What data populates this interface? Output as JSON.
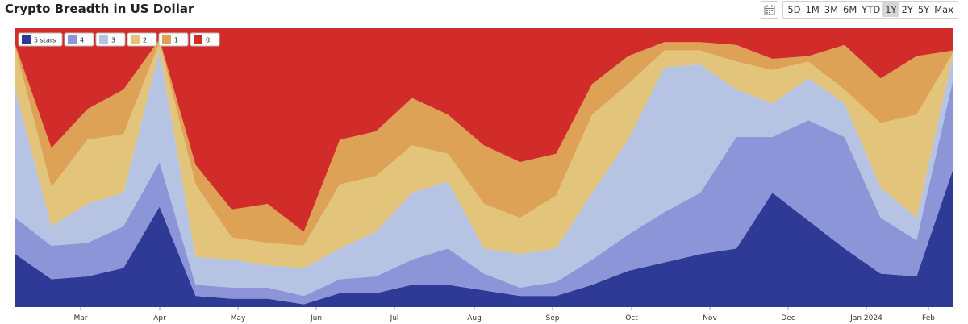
{
  "header": {
    "title": "Crypto Breadth in US Dollar"
  },
  "range": {
    "options": [
      "5D",
      "1M",
      "3M",
      "6M",
      "YTD",
      "1Y",
      "2Y",
      "5Y",
      "Max"
    ],
    "selected": "1Y"
  },
  "icons": {
    "calendar": "calendar-icon"
  },
  "colors": {
    "s5": "#2f3a96",
    "s4": "#8c95d8",
    "s3": "#b6c3e2",
    "s2": "#e2c47a",
    "s1": "#dea257",
    "s0": "#d12b2a"
  },
  "chart_data": {
    "type": "area",
    "stacked": true,
    "normalized": true,
    "title": "Crypto Breadth in US Dollar",
    "legend_position": "top-left",
    "x_ticks": [
      "Mar",
      "Apr",
      "May",
      "Jun",
      "Jul",
      "Aug",
      "Sep",
      "Oct",
      "Nov",
      "Dec",
      "Jan 2024",
      "Feb"
    ],
    "x": [
      "Feb 10",
      "Feb 24",
      "Mar 10",
      "Mar 24",
      "Apr 7",
      "Apr 21",
      "May 5",
      "May 19",
      "Jun 2",
      "Jun 16",
      "Jun 30",
      "Jul 14",
      "Jul 28",
      "Aug 11",
      "Aug 25",
      "Sep 8",
      "Sep 22",
      "Oct 6",
      "Oct 20",
      "Nov 3",
      "Nov 17",
      "Dec 1",
      "Dec 15",
      "Dec 29",
      "Jan 12",
      "Jan 26",
      "Feb 9"
    ],
    "ylim": [
      0,
      100
    ],
    "series": [
      {
        "name": "5 stars",
        "values": [
          19,
          10,
          11,
          14,
          36,
          4,
          3,
          3,
          1,
          5,
          5,
          8,
          8,
          6,
          4,
          4,
          8,
          13,
          16,
          19,
          21,
          41,
          31,
          21,
          12,
          11,
          49
        ]
      },
      {
        "name": "4",
        "values": [
          13,
          12,
          12,
          15,
          16,
          4,
          4,
          4,
          3,
          5,
          6,
          9,
          13,
          6,
          3,
          5,
          9,
          13,
          18,
          22,
          40,
          20,
          36,
          40,
          20,
          13,
          32
        ]
      },
      {
        "name": "3",
        "values": [
          46,
          7,
          14,
          12,
          40,
          10,
          10,
          8,
          10,
          11,
          16,
          24,
          24,
          9,
          12,
          12,
          24,
          34,
          52,
          46,
          17,
          12,
          15,
          12,
          11,
          8,
          9
        ]
      },
      {
        "name": "2",
        "values": [
          15,
          14,
          23,
          21,
          3,
          26,
          8,
          8,
          8,
          23,
          20,
          17,
          10,
          16,
          13,
          19,
          28,
          20,
          6,
          5,
          10,
          12,
          6,
          5,
          23,
          37,
          1
        ]
      },
      {
        "name": "1",
        "values": [
          1,
          14,
          11,
          16,
          1,
          7,
          10,
          14,
          5,
          16,
          16,
          17,
          14,
          21,
          20,
          15,
          11,
          10,
          3,
          3,
          6,
          4,
          2,
          16,
          16,
          21,
          1
        ]
      },
      {
        "name": "0",
        "values": [
          6,
          43,
          29,
          22,
          4,
          49,
          65,
          63,
          73,
          40,
          37,
          25,
          31,
          42,
          48,
          45,
          20,
          10,
          5,
          5,
          6,
          11,
          10,
          6,
          18,
          10,
          8
        ]
      }
    ]
  }
}
